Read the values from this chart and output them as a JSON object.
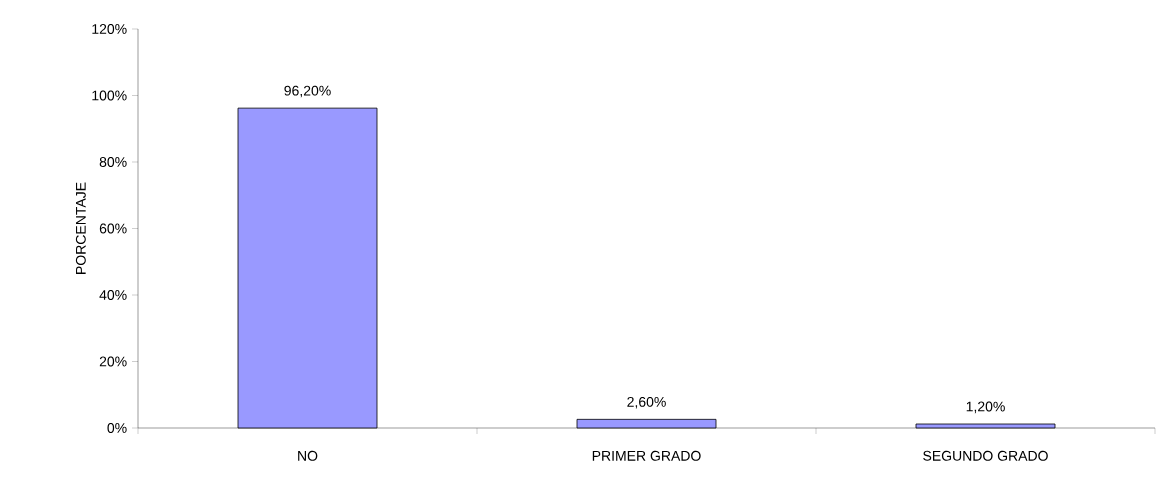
{
  "chart_data": {
    "type": "bar",
    "ylabel": "PORCENTAJE",
    "categories": [
      "NO",
      "PRIMER GRADO",
      "SEGUNDO GRADO"
    ],
    "values": [
      96.2,
      2.6,
      1.2
    ],
    "value_labels": [
      "96,20%",
      "2,60%",
      "1,20%"
    ],
    "color": "#9999ff",
    "ylim": [
      0,
      120
    ],
    "yticks": [
      {
        "value": 0,
        "label": "0%"
      },
      {
        "value": 20,
        "label": "20%"
      },
      {
        "value": 40,
        "label": "40%"
      },
      {
        "value": 60,
        "label": "60%"
      },
      {
        "value": 80,
        "label": "80%"
      },
      {
        "value": 100,
        "label": "100%"
      },
      {
        "value": 120,
        "label": "120%"
      }
    ]
  }
}
